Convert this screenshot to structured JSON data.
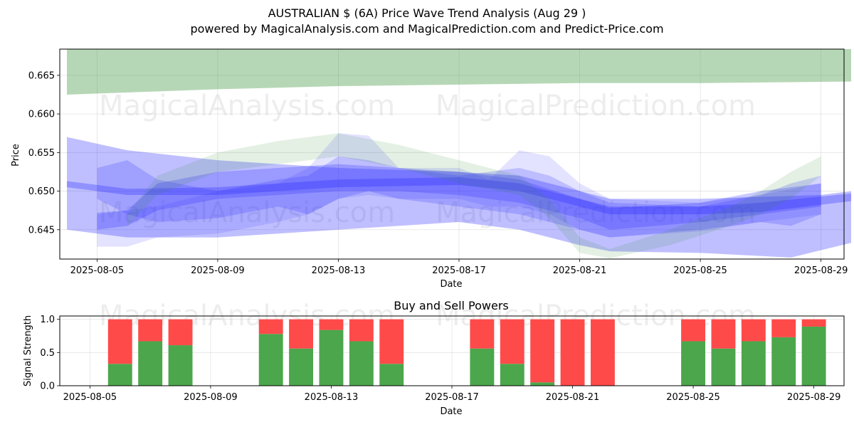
{
  "title": "AUSTRALIAN $ (6A) Price Wave Trend Analysis (Aug 29 )",
  "subtitle": "powered by MagicalAnalysis.com and MagicalPrediction.com and Predict-Price.com",
  "watermarks": [
    "MagicalAnalysis.com",
    "MagicalPrediction.com"
  ],
  "colors": {
    "green_band": "#2e8b2e",
    "blue_band": "#2a2aff",
    "buy": "#4ca64c",
    "sell": "#ff4a4a"
  },
  "chart_data": [
    {
      "type": "area",
      "name": "price-wave",
      "xlabel": "Date",
      "ylabel": "Price",
      "x_ticks": [
        "2025-08-05",
        "2025-08-09",
        "2025-08-13",
        "2025-08-17",
        "2025-08-21",
        "2025-08-25",
        "2025-08-29"
      ],
      "y_ticks": [
        "0.645",
        "0.650",
        "0.655",
        "0.660",
        "0.665"
      ],
      "xlim": [
        "2025-08-04",
        "2025-08-30"
      ],
      "ylim": [
        0.6412,
        0.6684
      ],
      "grid": true,
      "bands": [
        {
          "color": "green",
          "opacity": 0.35,
          "upper": [
            [
              "2025-08-04",
              0.6684
            ],
            [
              "2025-08-09",
              0.6684
            ],
            [
              "2025-08-17",
              0.6684
            ],
            [
              "2025-08-25",
              0.6684
            ],
            [
              "2025-08-29",
              0.6684
            ],
            [
              "2025-08-30",
              0.6684
            ]
          ],
          "lower": [
            [
              "2025-08-04",
              0.6625
            ],
            [
              "2025-08-09",
              0.6632
            ],
            [
              "2025-08-13",
              0.6636
            ],
            [
              "2025-08-17",
              0.6638
            ],
            [
              "2025-08-21",
              0.664
            ],
            [
              "2025-08-25",
              0.664
            ],
            [
              "2025-08-30",
              0.6642
            ]
          ]
        },
        {
          "color": "blue",
          "opacity": 0.3,
          "upper": [
            [
              "2025-08-04",
              0.657
            ],
            [
              "2025-08-06",
              0.6553
            ],
            [
              "2025-08-09",
              0.654
            ],
            [
              "2025-08-13",
              0.653
            ],
            [
              "2025-08-17",
              0.6525
            ],
            [
              "2025-08-19",
              0.652
            ],
            [
              "2025-08-21",
              0.65
            ],
            [
              "2025-08-22",
              0.649
            ],
            [
              "2025-08-25",
              0.649
            ],
            [
              "2025-08-29",
              0.6495
            ],
            [
              "2025-08-30",
              0.65
            ]
          ],
          "lower": [
            [
              "2025-08-04",
              0.645
            ],
            [
              "2025-08-06",
              0.644
            ],
            [
              "2025-08-09",
              0.644
            ],
            [
              "2025-08-13",
              0.645
            ],
            [
              "2025-08-17",
              0.646
            ],
            [
              "2025-08-19",
              0.645
            ],
            [
              "2025-08-21",
              0.643
            ],
            [
              "2025-08-22",
              0.6422
            ],
            [
              "2025-08-25",
              0.642
            ],
            [
              "2025-08-28",
              0.6414
            ],
            [
              "2025-08-30",
              0.6433
            ]
          ]
        },
        {
          "color": "blue",
          "opacity": 0.3,
          "upper": [
            [
              "2025-08-04",
              0.6513
            ],
            [
              "2025-08-06",
              0.6503
            ],
            [
              "2025-08-09",
              0.6505
            ],
            [
              "2025-08-13",
              0.6515
            ],
            [
              "2025-08-17",
              0.6518
            ],
            [
              "2025-08-19",
              0.651
            ],
            [
              "2025-08-21",
              0.649
            ],
            [
              "2025-08-22",
              0.648
            ],
            [
              "2025-08-25",
              0.648
            ],
            [
              "2025-08-27",
              0.6485
            ],
            [
              "2025-08-30",
              0.6497
            ]
          ],
          "lower": [
            [
              "2025-08-04",
              0.6505
            ],
            [
              "2025-08-06",
              0.6495
            ],
            [
              "2025-08-09",
              0.6495
            ],
            [
              "2025-08-13",
              0.6505
            ],
            [
              "2025-08-17",
              0.6508
            ],
            [
              "2025-08-19",
              0.65
            ],
            [
              "2025-08-21",
              0.648
            ],
            [
              "2025-08-22",
              0.647
            ],
            [
              "2025-08-25",
              0.647
            ],
            [
              "2025-08-27",
              0.6473
            ],
            [
              "2025-08-30",
              0.6487
            ]
          ]
        },
        {
          "color": "blue",
          "opacity": 0.25,
          "upper": [
            [
              "2025-08-05",
              0.6472
            ],
            [
              "2025-08-06",
              0.6475
            ],
            [
              "2025-08-07",
              0.651
            ],
            [
              "2025-08-09",
              0.6525
            ],
            [
              "2025-08-11",
              0.653
            ],
            [
              "2025-08-13",
              0.6535
            ],
            [
              "2025-08-15",
              0.653
            ],
            [
              "2025-08-17",
              0.6525
            ],
            [
              "2025-08-19",
              0.6515
            ],
            [
              "2025-08-21",
              0.649
            ],
            [
              "2025-08-22",
              0.6478
            ],
            [
              "2025-08-25",
              0.6485
            ],
            [
              "2025-08-27",
              0.65
            ],
            [
              "2025-08-29",
              0.651
            ]
          ],
          "lower": [
            [
              "2025-08-05",
              0.645
            ],
            [
              "2025-08-06",
              0.6455
            ],
            [
              "2025-08-07",
              0.6475
            ],
            [
              "2025-08-09",
              0.649
            ],
            [
              "2025-08-11",
              0.6495
            ],
            [
              "2025-08-13",
              0.65
            ],
            [
              "2025-08-15",
              0.65
            ],
            [
              "2025-08-17",
              0.6495
            ],
            [
              "2025-08-19",
              0.6485
            ],
            [
              "2025-08-21",
              0.6465
            ],
            [
              "2025-08-22",
              0.645
            ],
            [
              "2025-08-25",
              0.646
            ],
            [
              "2025-08-27",
              0.647
            ],
            [
              "2025-08-29",
              0.648
            ]
          ]
        },
        {
          "color": "blue",
          "opacity": 0.2,
          "upper": [
            [
              "2025-08-05",
              0.653
            ],
            [
              "2025-08-06",
              0.654
            ],
            [
              "2025-08-07",
              0.6515
            ],
            [
              "2025-08-09",
              0.65
            ],
            [
              "2025-08-11",
              0.6515
            ],
            [
              "2025-08-12",
              0.652
            ],
            [
              "2025-08-13",
              0.6545
            ],
            [
              "2025-08-14",
              0.654
            ],
            [
              "2025-08-15",
              0.653
            ],
            [
              "2025-08-17",
              0.652
            ],
            [
              "2025-08-19",
              0.653
            ],
            [
              "2025-08-20",
              0.652
            ],
            [
              "2025-08-21",
              0.65
            ],
            [
              "2025-08-22",
              0.6485
            ],
            [
              "2025-08-25",
              0.648
            ],
            [
              "2025-08-27",
              0.6495
            ],
            [
              "2025-08-28",
              0.651
            ],
            [
              "2025-08-29",
              0.652
            ]
          ],
          "lower": [
            [
              "2025-08-05",
              0.649
            ],
            [
              "2025-08-06",
              0.647
            ],
            [
              "2025-08-07",
              0.646
            ],
            [
              "2025-08-09",
              0.6465
            ],
            [
              "2025-08-11",
              0.648
            ],
            [
              "2025-08-12",
              0.647
            ],
            [
              "2025-08-13",
              0.649
            ],
            [
              "2025-08-14",
              0.65
            ],
            [
              "2025-08-15",
              0.649
            ],
            [
              "2025-08-17",
              0.648
            ],
            [
              "2025-08-19",
              0.647
            ],
            [
              "2025-08-20",
              0.646
            ],
            [
              "2025-08-21",
              0.645
            ],
            [
              "2025-08-22",
              0.644
            ],
            [
              "2025-08-25",
              0.645
            ],
            [
              "2025-08-27",
              0.646
            ],
            [
              "2025-08-28",
              0.6455
            ],
            [
              "2025-08-29",
              0.647
            ]
          ]
        },
        {
          "color": "blue",
          "opacity": 0.13,
          "upper": [
            [
              "2025-08-05",
              0.647
            ],
            [
              "2025-08-07",
              0.648
            ],
            [
              "2025-08-09",
              0.65
            ],
            [
              "2025-08-11",
              0.651
            ],
            [
              "2025-08-12",
              0.653
            ],
            [
              "2025-08-13",
              0.6575
            ],
            [
              "2025-08-14",
              0.6572
            ],
            [
              "2025-08-15",
              0.653
            ],
            [
              "2025-08-17",
              0.653
            ],
            [
              "2025-08-18",
              0.6515
            ],
            [
              "2025-08-19",
              0.6553
            ],
            [
              "2025-08-20",
              0.6545
            ],
            [
              "2025-08-21",
              0.651
            ],
            [
              "2025-08-22",
              0.649
            ],
            [
              "2025-08-25",
              0.6485
            ],
            [
              "2025-08-27",
              0.6495
            ],
            [
              "2025-08-29",
              0.651
            ]
          ],
          "lower": [
            [
              "2025-08-05",
              0.6428
            ],
            [
              "2025-08-06",
              0.6428
            ],
            [
              "2025-08-07",
              0.644
            ],
            [
              "2025-08-09",
              0.6445
            ],
            [
              "2025-08-11",
              0.646
            ],
            [
              "2025-08-12",
              0.647
            ],
            [
              "2025-08-13",
              0.649
            ],
            [
              "2025-08-14",
              0.6495
            ],
            [
              "2025-08-15",
              0.649
            ],
            [
              "2025-08-17",
              0.649
            ],
            [
              "2025-08-18",
              0.648
            ],
            [
              "2025-08-19",
              0.648
            ],
            [
              "2025-08-20",
              0.647
            ],
            [
              "2025-08-21",
              0.645
            ],
            [
              "2025-08-22",
              0.644
            ],
            [
              "2025-08-25",
              0.6448
            ],
            [
              "2025-08-27",
              0.646
            ],
            [
              "2025-08-29",
              0.647
            ]
          ]
        },
        {
          "color": "green",
          "opacity": 0.13,
          "upper": [
            [
              "2025-08-06",
              0.647
            ],
            [
              "2025-08-07",
              0.652
            ],
            [
              "2025-08-09",
              0.655
            ],
            [
              "2025-08-11",
              0.6565
            ],
            [
              "2025-08-13",
              0.6575
            ],
            [
              "2025-08-15",
              0.656
            ],
            [
              "2025-08-17",
              0.654
            ],
            [
              "2025-08-19",
              0.652
            ],
            [
              "2025-08-20",
              0.649
            ],
            [
              "2025-08-21",
              0.644
            ],
            [
              "2025-08-22",
              0.6425
            ],
            [
              "2025-08-24",
              0.645
            ],
            [
              "2025-08-26",
              0.648
            ],
            [
              "2025-08-27",
              0.65
            ],
            [
              "2025-08-28",
              0.6525
            ],
            [
              "2025-08-29",
              0.6545
            ]
          ],
          "lower": [
            [
              "2025-08-06",
              0.6455
            ],
            [
              "2025-08-07",
              0.6495
            ],
            [
              "2025-08-09",
              0.6525
            ],
            [
              "2025-08-11",
              0.6535
            ],
            [
              "2025-08-13",
              0.6545
            ],
            [
              "2025-08-15",
              0.653
            ],
            [
              "2025-08-17",
              0.651
            ],
            [
              "2025-08-19",
              0.6495
            ],
            [
              "2025-08-20",
              0.6465
            ],
            [
              "2025-08-21",
              0.642
            ],
            [
              "2025-08-22",
              0.6413
            ],
            [
              "2025-08-24",
              0.643
            ],
            [
              "2025-08-26",
              0.6455
            ],
            [
              "2025-08-27",
              0.647
            ],
            [
              "2025-08-28",
              0.649
            ],
            [
              "2025-08-29",
              0.652
            ]
          ]
        }
      ]
    },
    {
      "type": "bar",
      "name": "buy-sell-powers",
      "title": "Buy and Sell Powers",
      "xlabel": "Date",
      "ylabel": "Signal Strength",
      "x_ticks": [
        "2025-08-05",
        "2025-08-09",
        "2025-08-13",
        "2025-08-17",
        "2025-08-21",
        "2025-08-25",
        "2025-08-29"
      ],
      "y_ticks": [
        "0.0",
        "0.5",
        "1.0"
      ],
      "xlim": [
        "2025-08-04",
        "2025-08-30"
      ],
      "ylim": [
        0,
        1.05
      ],
      "grid": true,
      "categories": [
        "2025-08-06",
        "2025-08-07",
        "2025-08-08",
        "2025-08-11",
        "2025-08-12",
        "2025-08-13",
        "2025-08-14",
        "2025-08-15",
        "2025-08-18",
        "2025-08-19",
        "2025-08-20",
        "2025-08-21",
        "2025-08-22",
        "2025-08-25",
        "2025-08-26",
        "2025-08-27",
        "2025-08-28",
        "2025-08-29"
      ],
      "series": [
        {
          "values": [
            0.33,
            0.67,
            0.61,
            0.78,
            0.56,
            0.84,
            0.67,
            0.33,
            0.56,
            0.33,
            0.05,
            0.0,
            0.0,
            0.67,
            0.56,
            0.67,
            0.73,
            0.89
          ]
        },
        {
          "values": [
            0.67,
            0.33,
            0.39,
            0.22,
            0.44,
            0.16,
            0.33,
            0.67,
            0.44,
            0.67,
            0.95,
            1.0,
            1.0,
            0.33,
            0.44,
            0.33,
            0.27,
            0.11
          ]
        }
      ]
    }
  ]
}
